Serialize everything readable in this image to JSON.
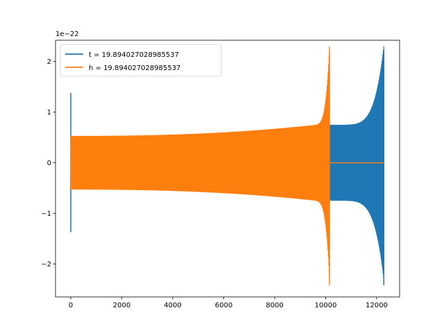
{
  "chart_data": {
    "type": "line",
    "title": "",
    "xlabel": "",
    "ylabel": "",
    "offset_text": "1e−22",
    "xlim": [
      -600,
      12900
    ],
    "ylim": [
      -2.65,
      2.42
    ],
    "x_ticks": [
      0,
      2000,
      4000,
      6000,
      8000,
      10000,
      12000
    ],
    "x_tick_labels": [
      "0",
      "2000",
      "4000",
      "6000",
      "8000",
      "10000",
      "12000"
    ],
    "y_ticks": [
      -2,
      -1,
      0,
      1,
      2
    ],
    "y_tick_labels": [
      "−2",
      "−1",
      "0",
      "1",
      "2"
    ],
    "grid": false,
    "legend_position": "top-left",
    "series": [
      {
        "name": "t = 19.894027028985537",
        "color": "#1f77b4",
        "start_x": 0,
        "start_spike_max": 1.38,
        "start_spike_min": -1.37,
        "start_amplitude": 0.52,
        "end_x": 12280,
        "end_max": 2.22,
        "end_min": -2.42,
        "amplitude_at_10150": 0.75
      },
      {
        "name": "h = 19.894027028985537",
        "color": "#ff7f0e",
        "start_x": 0,
        "start_amplitude": 0.53,
        "end_x": 10150,
        "end_max": 2.22,
        "end_min": -2.42,
        "flat_value_after_end": 0,
        "flat_until_x": 12280
      }
    ]
  }
}
